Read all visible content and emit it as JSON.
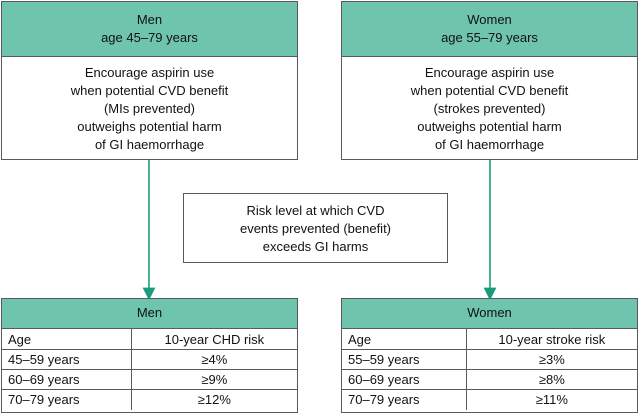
{
  "top_left": {
    "title": "Men",
    "subtitle": "age 45–79 years",
    "lines": [
      "Encourage aspirin use",
      "when potential CVD benefit",
      "(MIs prevented)",
      "outweighs potential harm",
      "of GI haemorrhage"
    ]
  },
  "top_right": {
    "title": "Women",
    "subtitle": "age 55–79 years",
    "lines": [
      "Encourage aspirin use",
      "when potential CVD benefit",
      "(strokes prevented)",
      "outweighs potential harm",
      "of GI haemorrhage"
    ]
  },
  "middle": {
    "lines": [
      "Risk level at which CVD",
      "events prevented (benefit)",
      "exceeds GI harms"
    ]
  },
  "table_men": {
    "title": "Men",
    "col1": "Age",
    "col2": "10-year CHD risk",
    "rows": [
      {
        "age": "45–59 years",
        "risk": "≥4%"
      },
      {
        "age": "60–69 years",
        "risk": "≥9%"
      },
      {
        "age": "70–79 years",
        "risk": "≥12%"
      }
    ]
  },
  "table_women": {
    "title": "Women",
    "col1": "Age",
    "col2": "10-year stroke risk",
    "rows": [
      {
        "age": "55–59 years",
        "risk": "≥3%"
      },
      {
        "age": "60–69 years",
        "risk": "≥8%"
      },
      {
        "age": "70–79 years",
        "risk": "≥11%"
      }
    ]
  },
  "colors": {
    "header_fill": "#6fc4ad",
    "arrow": "#1a9c7c",
    "border": "#5a5a5a"
  }
}
